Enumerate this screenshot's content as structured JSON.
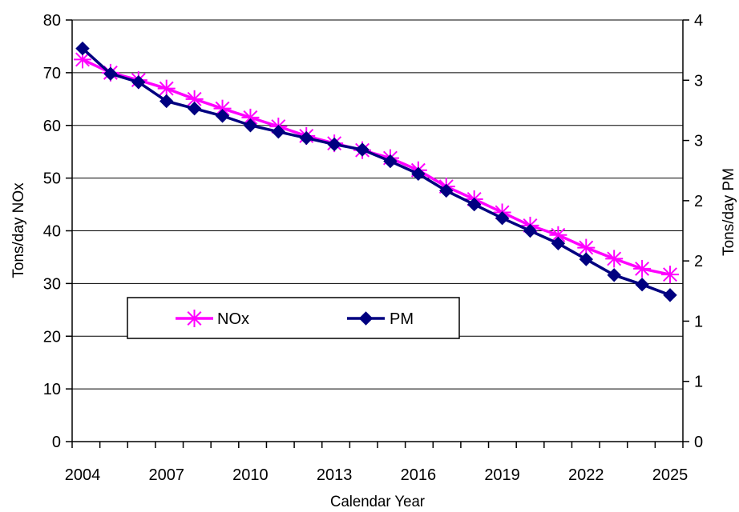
{
  "chart_data": {
    "type": "line",
    "title": "",
    "xlabel": "Calendar Year",
    "ylabel_left": "Tons/day NOx",
    "ylabel_right": "Tons/day PM",
    "x": [
      2004,
      2005,
      2006,
      2007,
      2008,
      2009,
      2010,
      2011,
      2012,
      2013,
      2014,
      2015,
      2016,
      2017,
      2018,
      2019,
      2020,
      2021,
      2022,
      2023,
      2024,
      2025
    ],
    "x_tick_labels": [
      "2004",
      "2007",
      "2010",
      "2013",
      "2016",
      "2019",
      "2022",
      "2025"
    ],
    "y_left_ticks": [
      "0",
      "10",
      "20",
      "30",
      "40",
      "50",
      "60",
      "70",
      "80"
    ],
    "y_left_range": [
      0,
      80
    ],
    "y_right_ticks": [
      "0",
      "1",
      "1",
      "2",
      "2",
      "3",
      "3",
      "4"
    ],
    "y_right_range": [
      0,
      4
    ],
    "grid": "horizontal",
    "legend": {
      "placement": "center-left"
    },
    "series": [
      {
        "name": "NOx",
        "axis": "left",
        "color": "#ff00ff",
        "marker": "asterisk",
        "values": [
          72.5,
          70.0,
          68.6,
          67.0,
          65.0,
          63.2,
          61.5,
          59.8,
          58.0,
          56.6,
          55.3,
          53.8,
          51.5,
          48.4,
          46.0,
          43.5,
          41.0,
          39.2,
          36.8,
          34.7,
          32.8,
          31.7
        ]
      },
      {
        "name": "PM",
        "axis": "right",
        "color": "#000080",
        "marker": "diamond",
        "values": [
          3.73,
          3.49,
          3.41,
          3.23,
          3.16,
          3.09,
          3.0,
          2.94,
          2.88,
          2.82,
          2.77,
          2.66,
          2.54,
          2.38,
          2.25,
          2.12,
          2.0,
          1.88,
          1.73,
          1.58,
          1.49,
          1.39
        ]
      }
    ]
  }
}
